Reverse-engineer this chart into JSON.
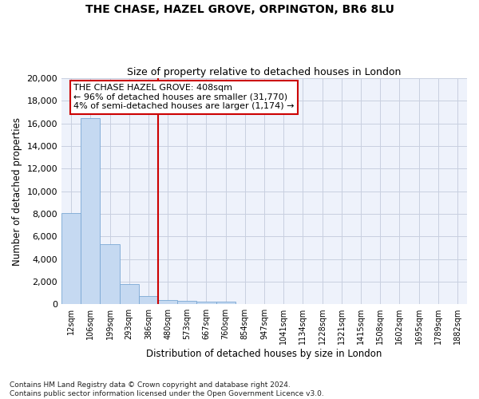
{
  "title1": "THE CHASE, HAZEL GROVE, ORPINGTON, BR6 8LU",
  "title2": "Size of property relative to detached houses in London",
  "xlabel": "Distribution of detached houses by size in London",
  "ylabel": "Number of detached properties",
  "bin_labels": [
    "12sqm",
    "106sqm",
    "199sqm",
    "293sqm",
    "386sqm",
    "480sqm",
    "573sqm",
    "667sqm",
    "760sqm",
    "854sqm",
    "947sqm",
    "1041sqm",
    "1134sqm",
    "1228sqm",
    "1321sqm",
    "1415sqm",
    "1508sqm",
    "1602sqm",
    "1695sqm",
    "1789sqm",
    "1882sqm"
  ],
  "bar_heights": [
    8100,
    16500,
    5300,
    1800,
    700,
    350,
    280,
    210,
    210,
    0,
    0,
    0,
    0,
    0,
    0,
    0,
    0,
    0,
    0,
    0,
    0
  ],
  "bar_color": "#c5d9f1",
  "bar_edge_color": "#7aa8d4",
  "vline_position": 4.5,
  "vline_color": "#cc0000",
  "annotation_title": "THE CHASE HAZEL GROVE: 408sqm",
  "annotation_line1": "← 96% of detached houses are smaller (31,770)",
  "annotation_line2": "4% of semi-detached houses are larger (1,174) →",
  "annotation_box_color": "#cc0000",
  "ylim": [
    0,
    20000
  ],
  "yticks": [
    0,
    2000,
    4000,
    6000,
    8000,
    10000,
    12000,
    14000,
    16000,
    18000,
    20000
  ],
  "grid_color": "#c8cfe0",
  "footer1": "Contains HM Land Registry data © Crown copyright and database right 2024.",
  "footer2": "Contains public sector information licensed under the Open Government Licence v3.0.",
  "bg_color": "#eef2fb"
}
